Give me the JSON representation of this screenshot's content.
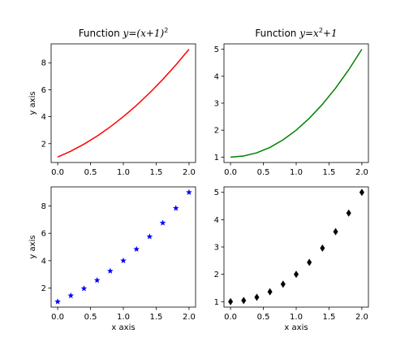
{
  "chart_data": [
    {
      "type": "line",
      "title": "Function y=(x+1)^2",
      "title_parts": {
        "prefix": "Function ",
        "math": "y=(x+1)",
        "sup": "2"
      },
      "xlabel": "",
      "ylabel": "y axis",
      "xlim": [
        -0.1,
        2.1
      ],
      "ylim": [
        0.6,
        9.4
      ],
      "xticks": [
        0.0,
        0.5,
        1.0,
        1.5,
        2.0
      ],
      "xtick_labels": [
        "0.0",
        "0.5",
        "1.0",
        "1.5",
        "2.0"
      ],
      "yticks": [
        2,
        4,
        6,
        8
      ],
      "ytick_labels": [
        "2",
        "4",
        "6",
        "8"
      ],
      "color": "#ff0000",
      "marker": "none",
      "x": [
        0.0,
        0.2,
        0.4,
        0.6,
        0.8,
        1.0,
        1.2,
        1.4,
        1.6,
        1.8,
        2.0
      ],
      "y": [
        1.0,
        1.44,
        1.96,
        2.56,
        3.24,
        4.0,
        4.84,
        5.76,
        6.76,
        7.84,
        9.0
      ]
    },
    {
      "type": "line",
      "title": "Function y=x^2+1",
      "title_parts": {
        "prefix": "Function ",
        "math": "y=x",
        "sup": "2",
        "suffix": "+1"
      },
      "xlabel": "",
      "ylabel": "",
      "xlim": [
        -0.1,
        2.1
      ],
      "ylim": [
        0.8,
        5.2
      ],
      "xticks": [
        0.0,
        0.5,
        1.0,
        1.5,
        2.0
      ],
      "xtick_labels": [
        "0.0",
        "0.5",
        "1.0",
        "1.5",
        "2.0"
      ],
      "yticks": [
        1,
        2,
        3,
        4,
        5
      ],
      "ytick_labels": [
        "1",
        "2",
        "3",
        "4",
        "5"
      ],
      "color": "#008000",
      "marker": "none",
      "x": [
        0.0,
        0.2,
        0.4,
        0.6,
        0.8,
        1.0,
        1.2,
        1.4,
        1.6,
        1.8,
        2.0
      ],
      "y": [
        1.0,
        1.04,
        1.16,
        1.36,
        1.64,
        2.0,
        2.44,
        2.96,
        3.56,
        4.24,
        5.0
      ]
    },
    {
      "type": "scatter",
      "title": "",
      "xlabel": "x axis",
      "ylabel": "y axis",
      "xlim": [
        -0.1,
        2.1
      ],
      "ylim": [
        0.6,
        9.4
      ],
      "xticks": [
        0.0,
        0.5,
        1.0,
        1.5,
        2.0
      ],
      "xtick_labels": [
        "0.0",
        "0.5",
        "1.0",
        "1.5",
        "2.0"
      ],
      "yticks": [
        2,
        4,
        6,
        8
      ],
      "ytick_labels": [
        "2",
        "4",
        "6",
        "8"
      ],
      "color": "#0000ff",
      "marker": "star",
      "x": [
        0.0,
        0.2,
        0.4,
        0.6,
        0.8,
        1.0,
        1.2,
        1.4,
        1.6,
        1.8,
        2.0
      ],
      "y": [
        1.0,
        1.44,
        1.96,
        2.56,
        3.24,
        4.0,
        4.84,
        5.76,
        6.76,
        7.84,
        9.0
      ]
    },
    {
      "type": "scatter",
      "title": "",
      "xlabel": "x axis",
      "ylabel": "",
      "xlim": [
        -0.1,
        2.1
      ],
      "ylim": [
        0.8,
        5.2
      ],
      "xticks": [
        0.0,
        0.5,
        1.0,
        1.5,
        2.0
      ],
      "xtick_labels": [
        "0.0",
        "0.5",
        "1.0",
        "1.5",
        "2.0"
      ],
      "yticks": [
        1,
        2,
        3,
        4,
        5
      ],
      "ytick_labels": [
        "1",
        "2",
        "3",
        "4",
        "5"
      ],
      "color": "#000000",
      "marker": "diamond",
      "x": [
        0.0,
        0.2,
        0.4,
        0.6,
        0.8,
        1.0,
        1.2,
        1.4,
        1.6,
        1.8,
        2.0
      ],
      "y": [
        1.0,
        1.04,
        1.16,
        1.36,
        1.64,
        2.0,
        2.44,
        2.96,
        3.56,
        4.24,
        5.0
      ]
    }
  ]
}
